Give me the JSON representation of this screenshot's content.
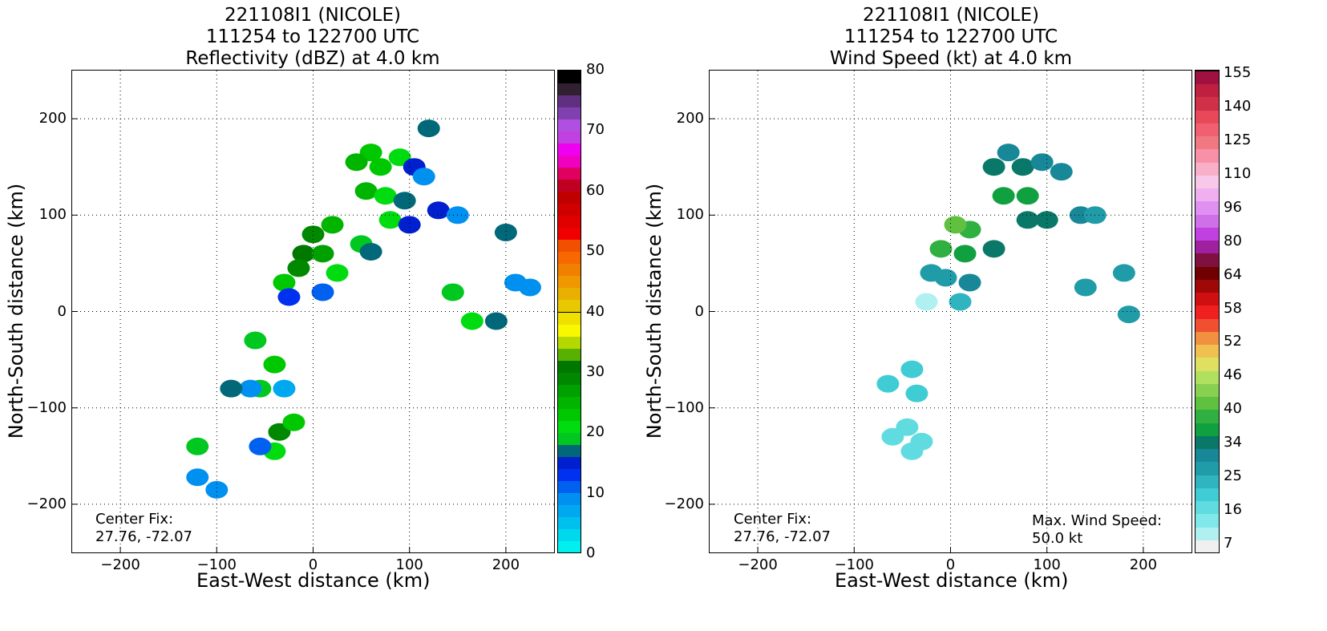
{
  "panels": [
    {
      "id": "reflectivity",
      "title_lines": [
        "221108I1 (NICOLE)",
        "111254 to 122700 UTC",
        "Reflectivity (dBZ) at 4.0 km"
      ],
      "xlabel": "East-West distance (km)",
      "ylabel": "North-South distance (km)",
      "center_fix": {
        "label": "Center Fix:",
        "value": "27.76, -72.07"
      }
    },
    {
      "id": "windspeed",
      "title_lines": [
        "221108I1 (NICOLE)",
        "111254 to 122700 UTC",
        "Wind Speed (kt) at 4.0 km"
      ],
      "xlabel": "East-West distance (km)",
      "ylabel": "North-South distance (km)",
      "center_fix": {
        "label": "Center Fix:",
        "value": "27.76, -72.07"
      },
      "max_wind": {
        "label": "Max. Wind Speed:",
        "value": "50.0 kt"
      }
    }
  ],
  "chart_data": [
    {
      "type": "heatmap",
      "title": "221108I1 (NICOLE) 111254 to 122700 UTC Reflectivity (dBZ) at 4.0 km",
      "xlabel": "East-West distance (km)",
      "ylabel": "North-South distance (km)",
      "xlim": [
        -250,
        250
      ],
      "ylim": [
        -250,
        250
      ],
      "xticks": [
        -200,
        -100,
        0,
        100,
        200
      ],
      "yticks": [
        -200,
        -100,
        0,
        100,
        200
      ],
      "grid": true,
      "colorbar": {
        "units": "dBZ",
        "min": 0,
        "max": 80,
        "step": 2.5,
        "tick_labels": [
          "0",
          "10",
          "20",
          "30",
          "40",
          "50",
          "60",
          "70",
          "80"
        ],
        "colors": [
          "#00f0f0",
          "#00d8ee",
          "#00c0ee",
          "#00a8f0",
          "#0090f0",
          "#0060f0",
          "#0030f0",
          "#0020d0",
          "#006878",
          "#00c820",
          "#00dc10",
          "#00c800",
          "#00b400",
          "#00a000",
          "#008800",
          "#007800",
          "#58b000",
          "#b4d800",
          "#f8f800",
          "#f0e000",
          "#e8c800",
          "#e8b000",
          "#f09800",
          "#f08000",
          "#f86800",
          "#f05000",
          "#f00000",
          "#e00000",
          "#d00000",
          "#c00000",
          "#c00020",
          "#e00060",
          "#f000c0",
          "#f000f0",
          "#c040e0",
          "#b050e0",
          "#8040b0",
          "#603080",
          "#302030",
          "#000000"
        ]
      },
      "cells": [
        {
          "x": 60,
          "y": 165,
          "v": 28
        },
        {
          "x": 45,
          "y": 155,
          "v": 30
        },
        {
          "x": 70,
          "y": 150,
          "v": 28
        },
        {
          "x": 90,
          "y": 160,
          "v": 25
        },
        {
          "x": 105,
          "y": 150,
          "v": 18
        },
        {
          "x": 115,
          "y": 140,
          "v": 12
        },
        {
          "x": 55,
          "y": 125,
          "v": 30
        },
        {
          "x": 75,
          "y": 120,
          "v": 27
        },
        {
          "x": 95,
          "y": 115,
          "v": 22
        },
        {
          "x": 80,
          "y": 95,
          "v": 25
        },
        {
          "x": 100,
          "y": 90,
          "v": 18
        },
        {
          "x": 20,
          "y": 90,
          "v": 30
        },
        {
          "x": 0,
          "y": 80,
          "v": 36
        },
        {
          "x": -10,
          "y": 60,
          "v": 38
        },
        {
          "x": -15,
          "y": 45,
          "v": 36
        },
        {
          "x": 10,
          "y": 60,
          "v": 33
        },
        {
          "x": 25,
          "y": 40,
          "v": 26
        },
        {
          "x": -30,
          "y": 30,
          "v": 28
        },
        {
          "x": 50,
          "y": 70,
          "v": 24
        },
        {
          "x": 60,
          "y": 62,
          "v": 20
        },
        {
          "x": 10,
          "y": 20,
          "v": 14
        },
        {
          "x": -25,
          "y": 15,
          "v": 16
        },
        {
          "x": 130,
          "y": 105,
          "v": 18
        },
        {
          "x": 150,
          "y": 100,
          "v": 12
        },
        {
          "x": 200,
          "y": 82,
          "v": 22
        },
        {
          "x": 210,
          "y": 30,
          "v": 12
        },
        {
          "x": 225,
          "y": 25,
          "v": 10
        },
        {
          "x": 190,
          "y": -10,
          "v": 22
        },
        {
          "x": 165,
          "y": -10,
          "v": 26
        },
        {
          "x": 145,
          "y": 20,
          "v": 24
        },
        {
          "x": 120,
          "y": 190,
          "v": 22
        },
        {
          "x": -40,
          "y": -55,
          "v": 28
        },
        {
          "x": -55,
          "y": -80,
          "v": 24
        },
        {
          "x": -65,
          "y": -80,
          "v": 12
        },
        {
          "x": -30,
          "y": -80,
          "v": 8
        },
        {
          "x": -35,
          "y": -125,
          "v": 36
        },
        {
          "x": -40,
          "y": -145,
          "v": 26
        },
        {
          "x": -55,
          "y": -140,
          "v": 14
        },
        {
          "x": -20,
          "y": -115,
          "v": 28
        },
        {
          "x": -85,
          "y": -80,
          "v": 22
        },
        {
          "x": -120,
          "y": -140,
          "v": 24
        },
        {
          "x": -120,
          "y": -172,
          "v": 12
        },
        {
          "x": -100,
          "y": -185,
          "v": 10
        },
        {
          "x": -60,
          "y": -30,
          "v": 24
        }
      ]
    },
    {
      "type": "heatmap",
      "title": "221108I1 (NICOLE) 111254 to 122700 UTC Wind Speed (kt) at 4.0 km",
      "xlabel": "East-West distance (km)",
      "ylabel": "North-South distance (km)",
      "xlim": [
        -250,
        250
      ],
      "ylim": [
        -250,
        250
      ],
      "xticks": [
        -200,
        -100,
        0,
        100,
        200
      ],
      "yticks": [
        -200,
        -100,
        0,
        100,
        200
      ],
      "grid": true,
      "max_wind_speed_kt": 50.0,
      "colorbar": {
        "units": "kt",
        "tick_labels": [
          "7",
          "16",
          "25",
          "34",
          "40",
          "46",
          "52",
          "58",
          "64",
          "80",
          "96",
          "110",
          "125",
          "140",
          "155"
        ],
        "colors": [
          "#f0f0f0",
          "#b0f0f0",
          "#80e8e8",
          "#60dce0",
          "#40ccd4",
          "#30b4c0",
          "#209ca8",
          "#188898",
          "#0a7868",
          "#10a040",
          "#30b040",
          "#60c040",
          "#88d050",
          "#b0e060",
          "#e0e060",
          "#f0c050",
          "#f09040",
          "#f05030",
          "#f02020",
          "#d01010",
          "#a00808",
          "#700000",
          "#801040",
          "#a020a0",
          "#c040e0",
          "#d070e8",
          "#e090f0",
          "#f0b0f0",
          "#f8c8e8",
          "#f8b0c8",
          "#f890a8",
          "#f07880",
          "#f06070",
          "#e84858",
          "#d03048",
          "#c02040",
          "#a01040"
        ]
      },
      "cells": [
        {
          "x": 60,
          "y": 165,
          "v": 33
        },
        {
          "x": 45,
          "y": 150,
          "v": 37
        },
        {
          "x": 75,
          "y": 150,
          "v": 36
        },
        {
          "x": 95,
          "y": 155,
          "v": 34
        },
        {
          "x": 115,
          "y": 145,
          "v": 32
        },
        {
          "x": 55,
          "y": 120,
          "v": 40
        },
        {
          "x": 80,
          "y": 120,
          "v": 39
        },
        {
          "x": 100,
          "y": 95,
          "v": 36
        },
        {
          "x": 80,
          "y": 95,
          "v": 38
        },
        {
          "x": 20,
          "y": 85,
          "v": 44
        },
        {
          "x": 5,
          "y": 90,
          "v": 48
        },
        {
          "x": -10,
          "y": 65,
          "v": 44
        },
        {
          "x": 15,
          "y": 60,
          "v": 42
        },
        {
          "x": 45,
          "y": 65,
          "v": 38
        },
        {
          "x": -20,
          "y": 40,
          "v": 30
        },
        {
          "x": -5,
          "y": 35,
          "v": 27
        },
        {
          "x": 20,
          "y": 30,
          "v": 32
        },
        {
          "x": -25,
          "y": 10,
          "v": 7
        },
        {
          "x": 10,
          "y": 10,
          "v": 22
        },
        {
          "x": 135,
          "y": 100,
          "v": 34
        },
        {
          "x": 150,
          "y": 100,
          "v": 30
        },
        {
          "x": 180,
          "y": 40,
          "v": 27
        },
        {
          "x": 140,
          "y": 25,
          "v": 30
        },
        {
          "x": 185,
          "y": -3,
          "v": 27
        },
        {
          "x": -40,
          "y": -60,
          "v": 20
        },
        {
          "x": -65,
          "y": -75,
          "v": 18
        },
        {
          "x": -35,
          "y": -85,
          "v": 18
        },
        {
          "x": -45,
          "y": -120,
          "v": 16
        },
        {
          "x": -30,
          "y": -135,
          "v": 14
        },
        {
          "x": -60,
          "y": -130,
          "v": 16
        },
        {
          "x": -40,
          "y": -145,
          "v": 17
        }
      ]
    }
  ]
}
